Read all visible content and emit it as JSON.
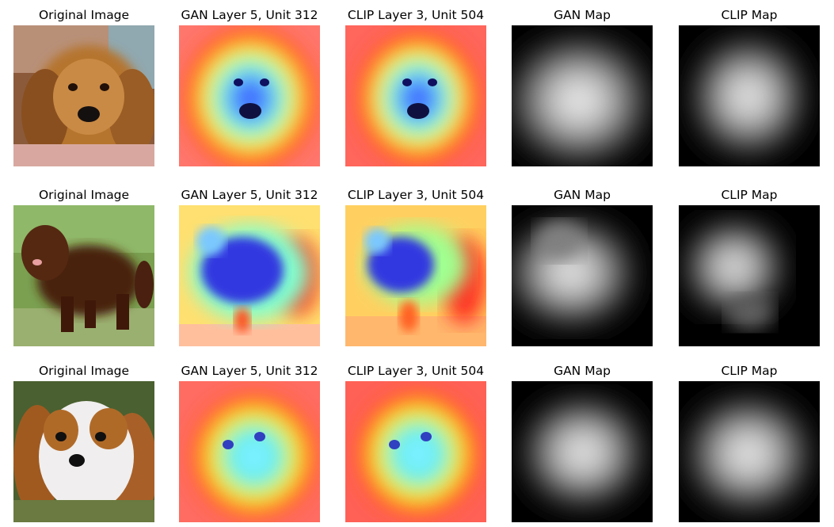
{
  "rows": [
    {
      "titles": [
        "Original Image",
        "GAN Layer 5, Unit 312",
        "CLIP Layer 3, Unit 504",
        "GAN Map",
        "CLIP Map"
      ]
    },
    {
      "titles": [
        "Original Image",
        "GAN Layer 5, Unit 312",
        "CLIP Layer 3, Unit 504",
        "GAN Map",
        "CLIP Map"
      ]
    },
    {
      "titles": [
        "Original Image",
        "GAN Layer 5, Unit 312",
        "CLIP Layer 3, Unit 504",
        "GAN Map",
        "CLIP Map"
      ]
    }
  ],
  "colors": {
    "heat_hot": "#ff2a1a",
    "heat_warm": "#ffd21a",
    "heat_mid": "#7fffc0",
    "heat_cool": "#3a5cff",
    "map_bg": "#000000",
    "map_peak": "#ffffff"
  }
}
